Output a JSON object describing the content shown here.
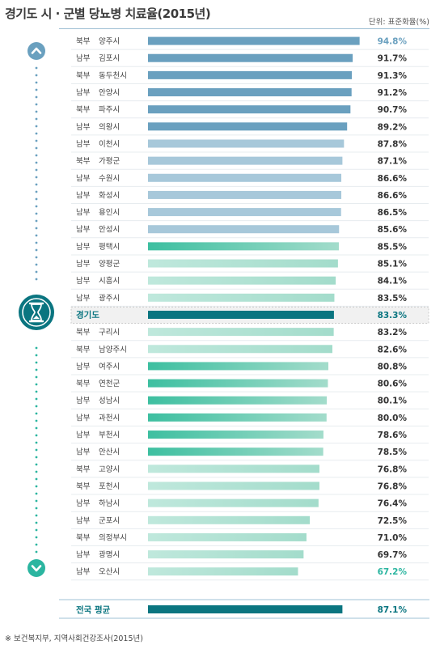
{
  "title": "경기도 시 · 군별 당뇨병 치료율(2015년)",
  "unit": "단위: 표준화율(%)",
  "footnote": "※ 보건복지부, 지역사회건강조사(2015년)",
  "colors": {
    "blue_dark": "#6aa0bf",
    "blue_light": "#a7c8da",
    "teal": "#3dbfa0",
    "mint": "#a3dccb",
    "highlight": "#0a7580",
    "accent_text": "#2bb5a0",
    "stripe": "#e7ecef"
  },
  "icons": {
    "up": "chevron-up-icon",
    "down": "chevron-down-icon",
    "emblem": "hourglass-icon"
  },
  "chart_data": {
    "type": "bar",
    "orientation": "horizontal",
    "xlim": [
      0,
      100
    ],
    "categories": [
      {
        "region": "북부",
        "name": "양주시",
        "value": 94.8,
        "label": "94.8%",
        "style": "accent-top"
      },
      {
        "region": "남부",
        "name": "김포시",
        "value": 91.7,
        "label": "91.7%",
        "style": "blue"
      },
      {
        "region": "북부",
        "name": "동두천시",
        "value": 91.3,
        "label": "91.3%",
        "style": "blue"
      },
      {
        "region": "남부",
        "name": "안양시",
        "value": 91.2,
        "label": "91.2%",
        "style": "blue"
      },
      {
        "region": "북부",
        "name": "파주시",
        "value": 90.7,
        "label": "90.7%",
        "style": "blue"
      },
      {
        "region": "남부",
        "name": "의왕시",
        "value": 89.2,
        "label": "89.2%",
        "style": "blue"
      },
      {
        "region": "남부",
        "name": "이천시",
        "value": 87.8,
        "label": "87.8%",
        "style": "blue"
      },
      {
        "region": "북부",
        "name": "가평군",
        "value": 87.1,
        "label": "87.1%",
        "style": "blue"
      },
      {
        "region": "남부",
        "name": "수원시",
        "value": 86.6,
        "label": "86.6%",
        "style": "blue"
      },
      {
        "region": "남부",
        "name": "화성시",
        "value": 86.6,
        "label": "86.6%",
        "style": "blue"
      },
      {
        "region": "남부",
        "name": "용인시",
        "value": 86.5,
        "label": "86.5%",
        "style": "blue"
      },
      {
        "region": "남부",
        "name": "안성시",
        "value": 85.6,
        "label": "85.6%",
        "style": "blue"
      },
      {
        "region": "남부",
        "name": "평택시",
        "value": 85.5,
        "label": "85.5%",
        "style": "teal"
      },
      {
        "region": "남부",
        "name": "양평군",
        "value": 85.1,
        "label": "85.1%",
        "style": "mint"
      },
      {
        "region": "남부",
        "name": "시흥시",
        "value": 84.1,
        "label": "84.1%",
        "style": "mint"
      },
      {
        "region": "남부",
        "name": "광주시",
        "value": 83.5,
        "label": "83.5%",
        "style": "mint"
      },
      {
        "region": "",
        "name": "경기도",
        "value": 83.3,
        "label": "83.3%",
        "style": "highlight"
      },
      {
        "region": "북부",
        "name": "구리시",
        "value": 83.2,
        "label": "83.2%",
        "style": "mint"
      },
      {
        "region": "북부",
        "name": "남양주시",
        "value": 82.6,
        "label": "82.6%",
        "style": "mint"
      },
      {
        "region": "남부",
        "name": "여주시",
        "value": 80.8,
        "label": "80.8%",
        "style": "teal"
      },
      {
        "region": "북부",
        "name": "연천군",
        "value": 80.6,
        "label": "80.6%",
        "style": "teal"
      },
      {
        "region": "남부",
        "name": "성남시",
        "value": 80.1,
        "label": "80.1%",
        "style": "teal"
      },
      {
        "region": "남부",
        "name": "과천시",
        "value": 80.0,
        "label": "80.0%",
        "style": "teal"
      },
      {
        "region": "남부",
        "name": "부천시",
        "value": 78.6,
        "label": "78.6%",
        "style": "teal"
      },
      {
        "region": "남부",
        "name": "안산시",
        "value": 78.5,
        "label": "78.5%",
        "style": "teal"
      },
      {
        "region": "북부",
        "name": "고양시",
        "value": 76.8,
        "label": "76.8%",
        "style": "mint"
      },
      {
        "region": "북부",
        "name": "포천시",
        "value": 76.8,
        "label": "76.8%",
        "style": "mint"
      },
      {
        "region": "남부",
        "name": "하남시",
        "value": 76.4,
        "label": "76.4%",
        "style": "mint"
      },
      {
        "region": "남부",
        "name": "군포시",
        "value": 72.5,
        "label": "72.5%",
        "style": "mint"
      },
      {
        "region": "북부",
        "name": "의정부시",
        "value": 71.0,
        "label": "71.0%",
        "style": "mint"
      },
      {
        "region": "남부",
        "name": "광명시",
        "value": 69.7,
        "label": "69.7%",
        "style": "mint"
      },
      {
        "region": "남부",
        "name": "오산시",
        "value": 67.2,
        "label": "67.2%",
        "style": "accent-bottom"
      }
    ],
    "national": {
      "name": "전국 평균",
      "value": 87.1,
      "label": "87.1%"
    }
  }
}
